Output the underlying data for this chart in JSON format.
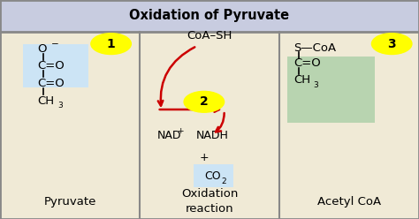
{
  "title": "Oxidation of Pyruvate",
  "title_bg": "#c8cce0",
  "panel_bg": "#f0ead6",
  "border_color": "#888888",
  "panel_labels": [
    "Pyruvate",
    "Oxidation\nreaction",
    "Acetyl CoA"
  ],
  "number_bg": "#ffff00",
  "arrow_color": "#cc0000",
  "highlight_blue": "#cce4f5",
  "highlight_green": "#b8d4b0",
  "figsize": [
    4.74,
    2.48
  ],
  "dpi": 100
}
